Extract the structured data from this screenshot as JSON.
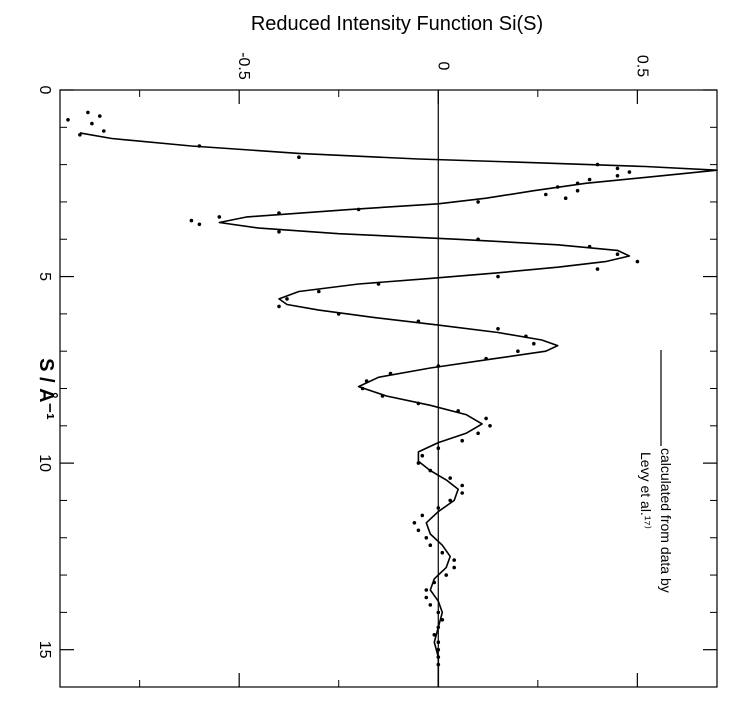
{
  "chart_data": {
    "type": "line",
    "title": "",
    "ylabel": "Reduced Intensity Function Si(S)",
    "xlabel": "S / Å⁻¹",
    "xlim": [
      0,
      16
    ],
    "ylim": [
      -0.95,
      0.7
    ],
    "x_ticks_major": [
      0,
      5,
      10,
      15
    ],
    "x_tick_labels": [
      "0",
      "5",
      "10",
      "15"
    ],
    "x_ticks_minor": [
      1,
      2,
      3,
      4,
      6,
      7,
      8,
      9,
      11,
      12,
      13,
      14,
      16
    ],
    "y_ticks": [
      -0.5,
      0,
      0.5
    ],
    "y_tick_labels": [
      "-0.5",
      "0",
      "0.5"
    ],
    "y_ticks_minor": [
      -0.75,
      -0.25,
      0.25
    ],
    "zero_line": true,
    "grid": false,
    "legend": {
      "placement": "bottom-right",
      "entries": [
        {
          "style": "line",
          "text_lines": [
            "calculated from data by",
            "Levy et al.¹⁷⁾"
          ]
        }
      ]
    },
    "series": [
      {
        "style": "line",
        "x": [
          1.15,
          1.3,
          1.5,
          1.7,
          1.85,
          1.95,
          2.05,
          2.15,
          2.3,
          2.5,
          2.7,
          2.9,
          3.05,
          3.2,
          3.4,
          3.55,
          3.7,
          3.85,
          4.0,
          4.15,
          4.3,
          4.45,
          4.6,
          4.75,
          4.9,
          5.05,
          5.2,
          5.4,
          5.6,
          5.75,
          5.9,
          6.1,
          6.3,
          6.5,
          6.7,
          6.85,
          7.0,
          7.2,
          7.45,
          7.7,
          7.95,
          8.2,
          8.45,
          8.7,
          8.95,
          9.2,
          9.45,
          9.7,
          9.95,
          10.2,
          10.45,
          10.7,
          11.0,
          11.3,
          11.6,
          11.9,
          12.2,
          12.5,
          12.8,
          13.1,
          13.4,
          13.7,
          14.0,
          14.4,
          14.8,
          15.2,
          15.6,
          16.0
        ],
        "y": [
          -0.9,
          -0.82,
          -0.62,
          -0.35,
          -0.05,
          0.25,
          0.52,
          0.7,
          0.56,
          0.37,
          0.24,
          0.12,
          0.0,
          -0.22,
          -0.48,
          -0.55,
          -0.45,
          -0.25,
          0.05,
          0.3,
          0.45,
          0.48,
          0.42,
          0.3,
          0.15,
          -0.02,
          -0.2,
          -0.35,
          -0.4,
          -0.38,
          -0.3,
          -0.16,
          0.0,
          0.15,
          0.26,
          0.3,
          0.27,
          0.14,
          -0.02,
          -0.15,
          -0.2,
          -0.13,
          -0.02,
          0.07,
          0.11,
          0.07,
          0.0,
          -0.05,
          -0.05,
          -0.02,
          0.02,
          0.05,
          0.04,
          0.0,
          -0.03,
          -0.02,
          0.01,
          0.03,
          0.02,
          -0.01,
          -0.02,
          0.0,
          0.01,
          0.0,
          -0.01,
          0.0,
          0.0,
          0.0
        ]
      },
      {
        "style": "dots",
        "x": [
          0.6,
          0.7,
          0.8,
          0.9,
          1.1,
          1.2,
          1.5,
          1.8,
          2.0,
          2.1,
          2.2,
          2.3,
          2.4,
          2.5,
          2.6,
          2.7,
          2.8,
          2.9,
          3.0,
          3.2,
          3.3,
          3.4,
          3.5,
          3.6,
          3.8,
          4.0,
          4.2,
          4.4,
          4.6,
          4.8,
          5.0,
          5.2,
          5.4,
          5.6,
          5.8,
          6.0,
          6.2,
          6.4,
          6.6,
          6.8,
          7.0,
          7.2,
          7.4,
          7.6,
          7.8,
          8.0,
          8.2,
          8.4,
          8.6,
          8.8,
          9.0,
          9.2,
          9.4,
          9.6,
          9.8,
          10.0,
          10.2,
          10.4,
          10.6,
          10.8,
          11.0,
          11.2,
          11.4,
          11.6,
          11.8,
          12.0,
          12.2,
          12.4,
          12.6,
          12.8,
          13.0,
          13.2,
          13.4,
          13.6,
          13.8,
          14.0,
          14.2,
          14.4,
          14.6,
          14.8,
          15.0,
          15.2,
          15.4
        ],
        "y": [
          -0.88,
          -0.85,
          -0.93,
          -0.87,
          -0.84,
          -0.9,
          -0.6,
          -0.35,
          0.4,
          0.45,
          0.48,
          0.45,
          0.38,
          0.35,
          0.3,
          0.35,
          0.27,
          0.32,
          0.1,
          -0.2,
          -0.4,
          -0.55,
          -0.62,
          -0.6,
          -0.4,
          0.1,
          0.38,
          0.45,
          0.5,
          0.4,
          0.15,
          -0.15,
          -0.3,
          -0.38,
          -0.4,
          -0.25,
          -0.05,
          0.15,
          0.22,
          0.24,
          0.2,
          0.12,
          0.0,
          -0.12,
          -0.18,
          -0.19,
          -0.14,
          -0.05,
          0.05,
          0.12,
          0.13,
          0.1,
          0.06,
          0.0,
          -0.04,
          -0.05,
          -0.02,
          0.03,
          0.06,
          0.06,
          0.03,
          0.0,
          -0.04,
          -0.06,
          -0.05,
          -0.03,
          -0.02,
          0.01,
          0.04,
          0.04,
          0.02,
          -0.01,
          -0.03,
          -0.03,
          -0.02,
          0.0,
          0.01,
          0.0,
          -0.01,
          0.0,
          0.0,
          0.0,
          0.0
        ]
      }
    ]
  }
}
